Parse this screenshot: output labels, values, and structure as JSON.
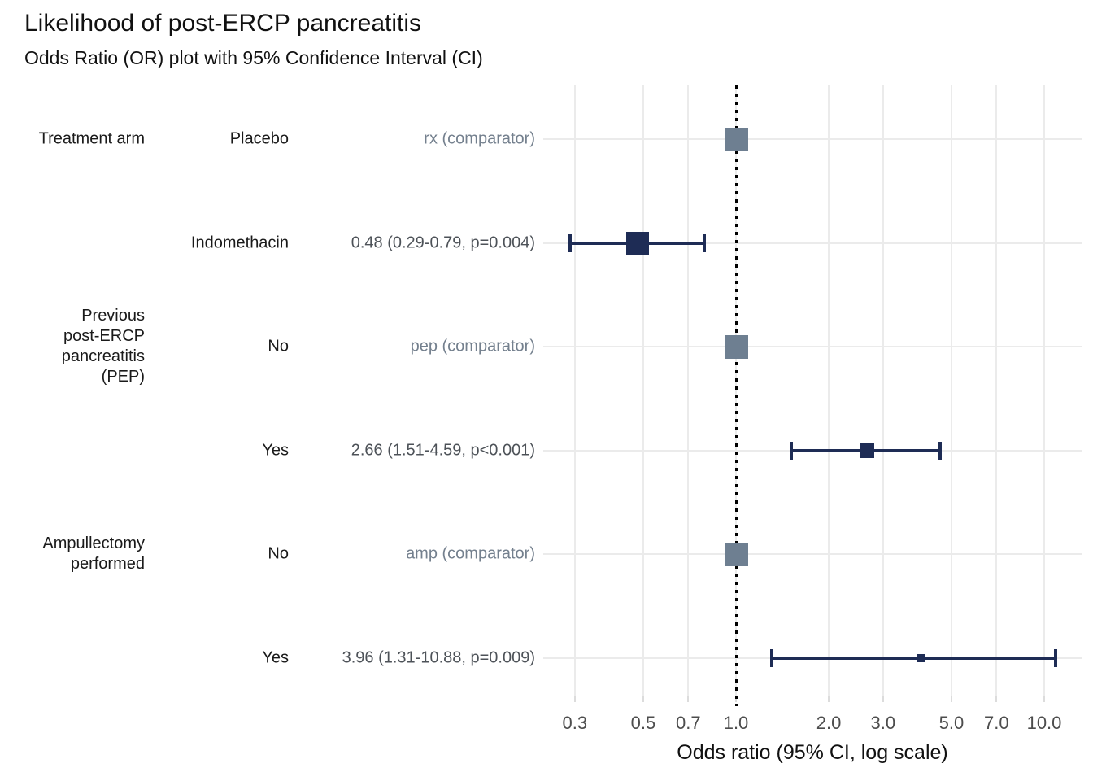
{
  "title": "Likelihood of post-ERCP pancreatitis",
  "subtitle": "Odds Ratio (OR) plot with 95% Confidence Interval (CI)",
  "chart_data": {
    "type": "scatter",
    "subtype": "forest-plot-odds-ratio",
    "title": "Likelihood of post-ERCP pancreatitis",
    "subtitle": "Odds Ratio (OR) plot with 95% Confidence Interval (CI)",
    "xlabel": "Odds ratio (95% CI, log scale)",
    "x_scale": "log10",
    "x_ticks": [
      0.3,
      0.5,
      0.7,
      1.0,
      2.0,
      3.0,
      5.0,
      7.0,
      10.0
    ],
    "x_tick_labels": [
      "0.3",
      "0.5",
      "0.7",
      "1.0",
      "2.0",
      "3.0",
      "5.0",
      "7.0",
      "10.0"
    ],
    "reference_line_x": 1.0,
    "grid": true,
    "rows": [
      {
        "group": "Treatment arm",
        "level": "Placebo",
        "value_label": "rx (comparator)",
        "or": 1.0,
        "ci_low": null,
        "ci_high": null,
        "p": null,
        "comparator": true,
        "marker_size": 29
      },
      {
        "group": "",
        "level": "Indomethacin",
        "value_label": "0.48 (0.29-0.79, p=0.004)",
        "or": 0.48,
        "ci_low": 0.29,
        "ci_high": 0.79,
        "p": "0.004",
        "comparator": false,
        "marker_size": 28
      },
      {
        "group": "Previous\npost-ERCP\npancreatitis\n(PEP)",
        "level": "No",
        "value_label": "pep (comparator)",
        "or": 1.0,
        "ci_low": null,
        "ci_high": null,
        "p": null,
        "comparator": true,
        "marker_size": 29
      },
      {
        "group": "",
        "level": "Yes",
        "value_label": "2.66 (1.51-4.59, p<0.001)",
        "or": 2.66,
        "ci_low": 1.51,
        "ci_high": 4.59,
        "p": "<0.001",
        "comparator": false,
        "marker_size": 18
      },
      {
        "group": "Ampullectomy\nperformed",
        "level": "No",
        "value_label": "amp (comparator)",
        "or": 1.0,
        "ci_low": null,
        "ci_high": null,
        "p": null,
        "comparator": true,
        "marker_size": 29
      },
      {
        "group": "",
        "level": "Yes",
        "value_label": "3.96 (1.31-10.88, p=0.009)",
        "or": 3.96,
        "ci_low": 1.31,
        "ci_high": 10.88,
        "p": "0.009",
        "comparator": false,
        "marker_size": 10
      }
    ],
    "colors": {
      "effect_marker": "#1e2c55",
      "comparator_marker": "#6e7f91",
      "ci_line": "#1e2c55",
      "gridline": "#ebebeb",
      "reference_line": "#000000",
      "tick_label": "#4d4d4d",
      "comparator_text": "#74808e",
      "effect_text": "#4d5258",
      "row_text": "#1a1a1a"
    }
  }
}
